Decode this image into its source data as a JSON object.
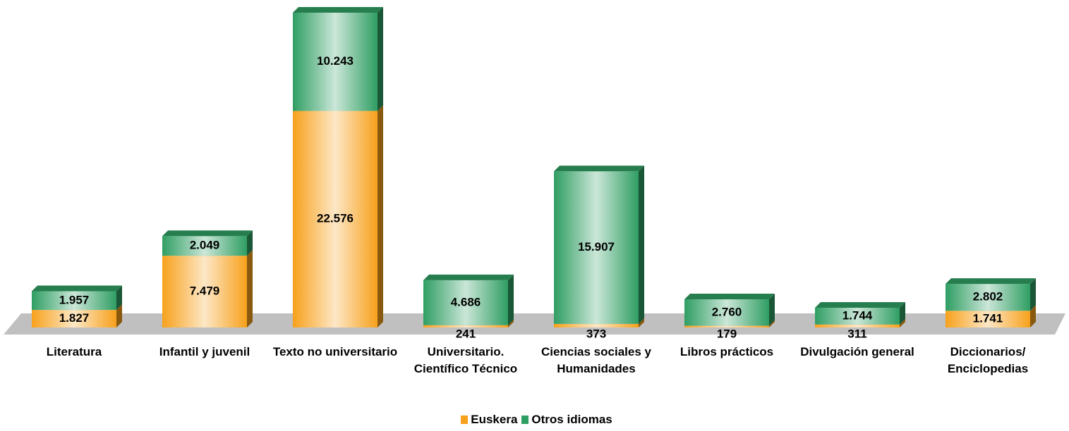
{
  "chart_data": {
    "type": "bar",
    "stacked": true,
    "categories": [
      "Literatura",
      "Infantil y juvenil",
      "Texto no universitario",
      "Universitario. Científico Técnico",
      "Ciencias sociales y Humanidades",
      "Libros prácticos",
      "Divulgación general",
      "Diccionarios/ Enciclopedias"
    ],
    "series": [
      {
        "name": "Euskera",
        "color": "#f7a11c",
        "values": [
          1827,
          7479,
          22576,
          241,
          373,
          179,
          311,
          1741
        ],
        "value_labels": [
          "1.827",
          "7.479",
          "22.576",
          "241",
          "373",
          "179",
          "311",
          "1.741"
        ]
      },
      {
        "name": "Otros idiomas",
        "color": "#2f9e63",
        "values": [
          1957,
          2049,
          10243,
          4686,
          15907,
          2760,
          1744,
          2802
        ],
        "value_labels": [
          "1.957",
          "2.049",
          "10.243",
          "4.686",
          "15.907",
          "2.760",
          "1.744",
          "2.802"
        ]
      }
    ],
    "legend": "bottom"
  }
}
